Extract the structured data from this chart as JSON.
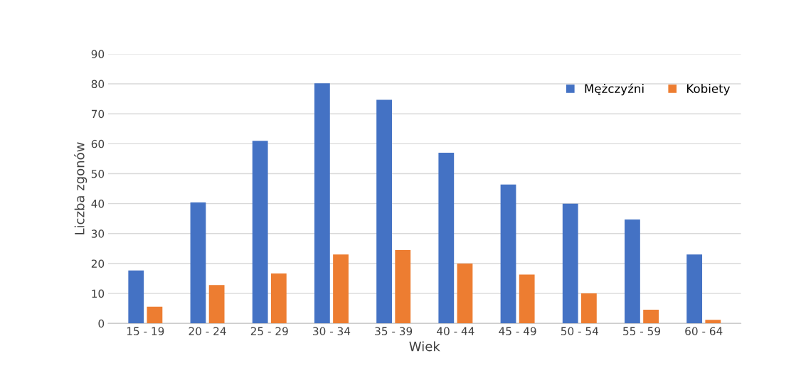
{
  "chart_data": {
    "type": "bar",
    "xlabel": "Wiek",
    "ylabel": "Liczba zgonów",
    "categories": [
      "15 - 19",
      "20 - 24",
      "25 - 29",
      "30 - 34",
      "35 - 39",
      "40 - 44",
      "45 - 49",
      "50 - 54",
      "55 - 59",
      "60 - 64"
    ],
    "series": [
      {
        "name": "Mężczyźni",
        "color": "#4472c4",
        "values": [
          17.7,
          40.4,
          61,
          80.2,
          74.7,
          57,
          46.4,
          40,
          34.7,
          23
        ]
      },
      {
        "name": "Kobiety",
        "color": "#ed7d31",
        "values": [
          5.6,
          12.8,
          16.7,
          23,
          24.5,
          20,
          16.3,
          10,
          4.6,
          1.2
        ]
      }
    ],
    "ylim": [
      0,
      90
    ],
    "yticks": [
      0,
      10,
      20,
      30,
      40,
      50,
      60,
      70,
      80,
      90
    ],
    "grid": "y",
    "legend": "top right"
  }
}
